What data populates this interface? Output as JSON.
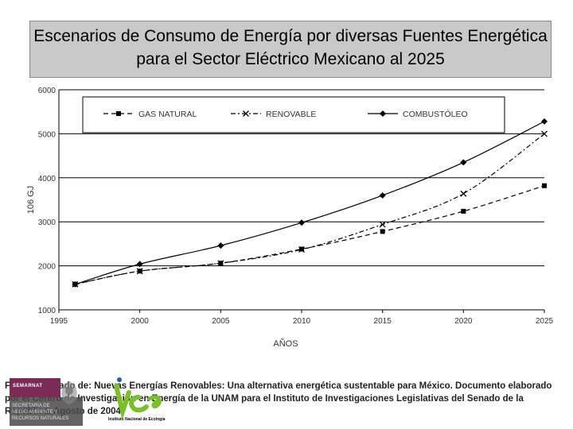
{
  "title": {
    "line1": "Escenarios de Consumo de Energía por diversas Fuentes Energética",
    "line2": "para el Sector Eléctrico Mexicano al 2025"
  },
  "chart_data": {
    "type": "line",
    "x": [
      1996,
      2000,
      2005,
      2010,
      2015,
      2020,
      2025
    ],
    "series": [
      {
        "name": "GAS NATURAL",
        "marker": "square",
        "dash": "dashed",
        "values": [
          1580,
          1880,
          2060,
          2380,
          2780,
          3240,
          3820
        ]
      },
      {
        "name": "RENOVABLE",
        "marker": "x",
        "dash": "dashdot",
        "values": [
          1580,
          1880,
          2060,
          2370,
          2940,
          3640,
          5000
        ]
      },
      {
        "name": "COMBUSTÓLEO",
        "marker": "diamond",
        "dash": "solid",
        "values": [
          1580,
          2040,
          2460,
          2980,
          3600,
          4350,
          5280
        ]
      }
    ],
    "xlim": [
      1995,
      2025
    ],
    "xticks": [
      "1995",
      "2000",
      "2005",
      "2010",
      "2015",
      "2020",
      "2025"
    ],
    "ylim": [
      1000,
      6000
    ],
    "yticks": [
      "1000",
      "2000",
      "3000",
      "4000",
      "5000",
      "6000"
    ],
    "xlabel": "AÑOS",
    "ylabel": "106 GJ",
    "grid": "horizontal",
    "legend": "top-inside"
  },
  "source": {
    "text": "Fuente: Tomado de: Nuevas Energías Renovables: Una alternativa energética sustentable para México. Documento elaborado por el Centro de Investigación en Energía de la UNAM para el Instituto de Investigaciones Legislativas del Senado de la República. Agosto de 2004"
  },
  "logos": {
    "semarnat": "SEMARNAT",
    "semarnat_sub": [
      "SECRETARÍA DE",
      "MEDIO AMBIENTE Y",
      "RECURSOS NATURALES"
    ],
    "ine": "Instituto Nacional de Ecología"
  },
  "colors": {
    "title_bg": "#c9c9c9",
    "semarnat": "#7a2b56",
    "ine_green": "#7bbf2a",
    "ine_blue": "#1f5fa8"
  }
}
